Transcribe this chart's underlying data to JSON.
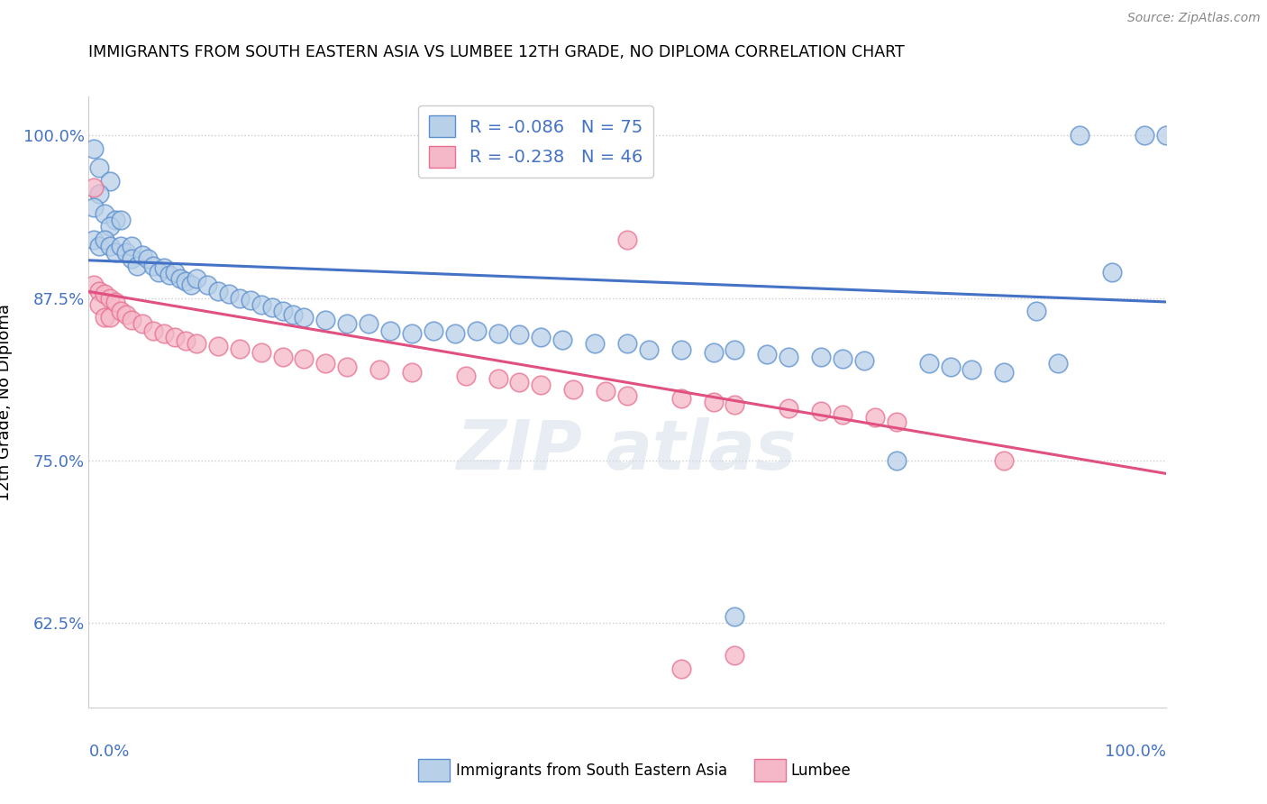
{
  "title": "IMMIGRANTS FROM SOUTH EASTERN ASIA VS LUMBEE 12TH GRADE, NO DIPLOMA CORRELATION CHART",
  "source": "Source: ZipAtlas.com",
  "ylabel": "12th Grade, No Diploma",
  "xlim": [
    0.0,
    1.0
  ],
  "ylim": [
    0.56,
    1.03
  ],
  "x_tick_labels": [
    "0.0%",
    "100.0%"
  ],
  "y_tick_labels": [
    "62.5%",
    "75.0%",
    "87.5%",
    "100.0%"
  ],
  "y_ticks": [
    0.625,
    0.75,
    0.875,
    1.0
  ],
  "legend_blue_r": "-0.086",
  "legend_blue_n": "75",
  "legend_pink_r": "-0.238",
  "legend_pink_n": "46",
  "blue_fill": "#b8d0e8",
  "pink_fill": "#f5b8c8",
  "blue_edge": "#5b8fce",
  "pink_edge": "#e87090",
  "blue_line_color": "#4472c4",
  "pink_line_color": "#e05080",
  "axis_label_color": "#4472c4",
  "blue_line_x": [
    0.0,
    1.0
  ],
  "blue_line_y": [
    0.904,
    0.872
  ],
  "pink_line_x": [
    0.0,
    1.0
  ],
  "pink_line_y": [
    0.88,
    0.74
  ],
  "blue_scatter": [
    [
      0.005,
      0.99
    ],
    [
      0.01,
      0.975
    ],
    [
      0.02,
      0.965
    ],
    [
      0.01,
      0.955
    ],
    [
      0.005,
      0.945
    ],
    [
      0.015,
      0.94
    ],
    [
      0.025,
      0.935
    ],
    [
      0.02,
      0.93
    ],
    [
      0.03,
      0.935
    ],
    [
      0.005,
      0.92
    ],
    [
      0.01,
      0.915
    ],
    [
      0.015,
      0.92
    ],
    [
      0.02,
      0.915
    ],
    [
      0.025,
      0.91
    ],
    [
      0.03,
      0.915
    ],
    [
      0.035,
      0.91
    ],
    [
      0.04,
      0.915
    ],
    [
      0.04,
      0.905
    ],
    [
      0.045,
      0.9
    ],
    [
      0.05,
      0.908
    ],
    [
      0.055,
      0.905
    ],
    [
      0.06,
      0.9
    ],
    [
      0.065,
      0.895
    ],
    [
      0.07,
      0.898
    ],
    [
      0.075,
      0.893
    ],
    [
      0.08,
      0.895
    ],
    [
      0.085,
      0.89
    ],
    [
      0.09,
      0.888
    ],
    [
      0.095,
      0.885
    ],
    [
      0.1,
      0.89
    ],
    [
      0.11,
      0.885
    ],
    [
      0.12,
      0.88
    ],
    [
      0.13,
      0.878
    ],
    [
      0.14,
      0.875
    ],
    [
      0.15,
      0.873
    ],
    [
      0.16,
      0.87
    ],
    [
      0.17,
      0.868
    ],
    [
      0.18,
      0.865
    ],
    [
      0.19,
      0.862
    ],
    [
      0.2,
      0.86
    ],
    [
      0.22,
      0.858
    ],
    [
      0.24,
      0.855
    ],
    [
      0.26,
      0.855
    ],
    [
      0.28,
      0.85
    ],
    [
      0.3,
      0.848
    ],
    [
      0.32,
      0.85
    ],
    [
      0.34,
      0.848
    ],
    [
      0.36,
      0.85
    ],
    [
      0.38,
      0.848
    ],
    [
      0.4,
      0.847
    ],
    [
      0.42,
      0.845
    ],
    [
      0.44,
      0.843
    ],
    [
      0.47,
      0.84
    ],
    [
      0.5,
      0.84
    ],
    [
      0.52,
      0.835
    ],
    [
      0.55,
      0.835
    ],
    [
      0.58,
      0.833
    ],
    [
      0.6,
      0.835
    ],
    [
      0.63,
      0.832
    ],
    [
      0.65,
      0.83
    ],
    [
      0.68,
      0.83
    ],
    [
      0.7,
      0.828
    ],
    [
      0.72,
      0.827
    ],
    [
      0.75,
      0.75
    ],
    [
      0.78,
      0.825
    ],
    [
      0.8,
      0.822
    ],
    [
      0.82,
      0.82
    ],
    [
      0.85,
      0.818
    ],
    [
      0.6,
      0.63
    ],
    [
      0.88,
      0.865
    ],
    [
      0.9,
      0.825
    ],
    [
      0.92,
      1.0
    ],
    [
      0.95,
      0.895
    ],
    [
      0.98,
      1.0
    ],
    [
      1.0,
      1.0
    ]
  ],
  "pink_scatter": [
    [
      0.005,
      0.96
    ],
    [
      0.005,
      0.885
    ],
    [
      0.01,
      0.88
    ],
    [
      0.01,
      0.87
    ],
    [
      0.015,
      0.878
    ],
    [
      0.015,
      0.86
    ],
    [
      0.02,
      0.875
    ],
    [
      0.02,
      0.86
    ],
    [
      0.025,
      0.872
    ],
    [
      0.03,
      0.865
    ],
    [
      0.035,
      0.862
    ],
    [
      0.04,
      0.858
    ],
    [
      0.05,
      0.855
    ],
    [
      0.06,
      0.85
    ],
    [
      0.07,
      0.848
    ],
    [
      0.08,
      0.845
    ],
    [
      0.09,
      0.842
    ],
    [
      0.1,
      0.84
    ],
    [
      0.12,
      0.838
    ],
    [
      0.14,
      0.836
    ],
    [
      0.16,
      0.833
    ],
    [
      0.18,
      0.83
    ],
    [
      0.2,
      0.828
    ],
    [
      0.22,
      0.825
    ],
    [
      0.24,
      0.822
    ],
    [
      0.27,
      0.82
    ],
    [
      0.3,
      0.818
    ],
    [
      0.35,
      0.815
    ],
    [
      0.38,
      0.813
    ],
    [
      0.4,
      0.81
    ],
    [
      0.42,
      0.808
    ],
    [
      0.45,
      0.805
    ],
    [
      0.48,
      0.803
    ],
    [
      0.5,
      0.8
    ],
    [
      0.55,
      0.798
    ],
    [
      0.58,
      0.795
    ],
    [
      0.6,
      0.793
    ],
    [
      0.65,
      0.79
    ],
    [
      0.68,
      0.788
    ],
    [
      0.7,
      0.785
    ],
    [
      0.73,
      0.783
    ],
    [
      0.75,
      0.78
    ],
    [
      0.5,
      0.92
    ],
    [
      0.85,
      0.75
    ],
    [
      0.55,
      0.59
    ],
    [
      0.6,
      0.6
    ]
  ]
}
